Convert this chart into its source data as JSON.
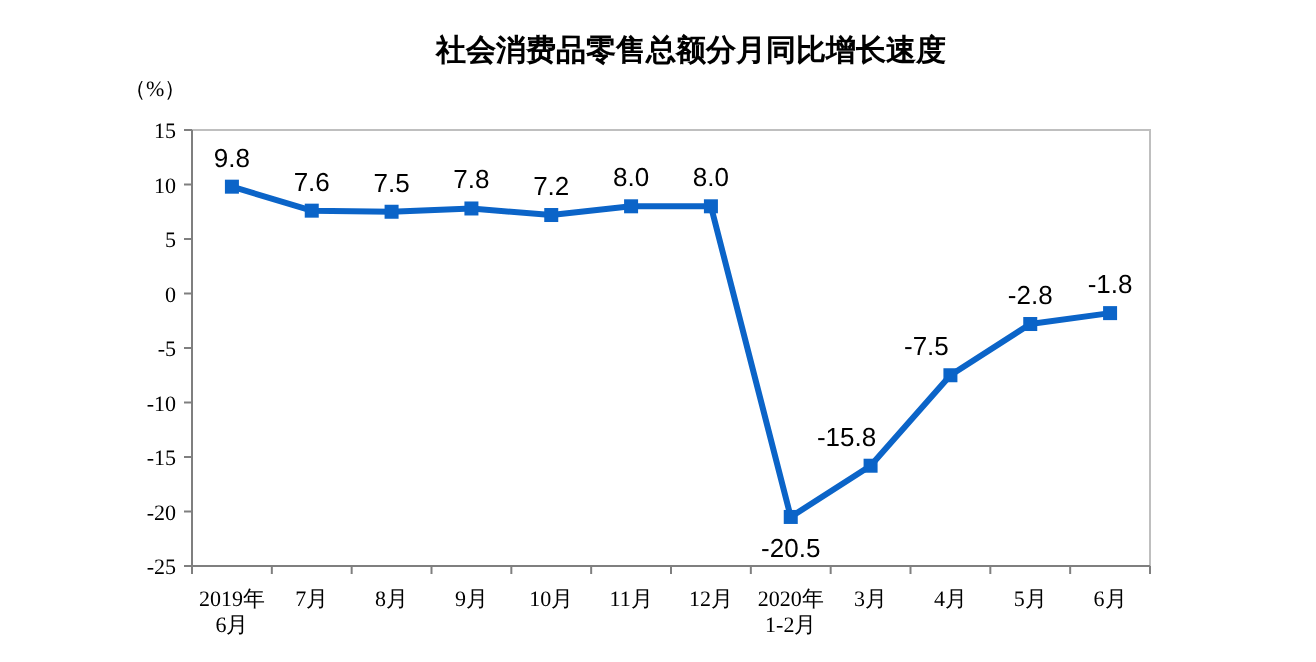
{
  "chart_data": {
    "type": "line",
    "title": "社会消费品零售总额分月同比增长速度",
    "ylabel": "（%）",
    "categories": [
      "2019年\n6月",
      "7月",
      "8月",
      "9月",
      "10月",
      "11月",
      "12月",
      "2020年\n1-2月",
      "3月",
      "4月",
      "5月",
      "6月"
    ],
    "series": [
      {
        "color": "#0b64c8",
        "values": [
          9.8,
          7.6,
          7.5,
          7.8,
          7.2,
          8.0,
          8.0,
          -20.5,
          -15.8,
          -7.5,
          -2.8,
          -1.8
        ],
        "value_labels": [
          "9.8",
          "7.6",
          "7.5",
          "7.8",
          "7.2",
          "8.0",
          "8.0",
          "-20.5",
          "-15.8",
          "-7.5",
          "-2.8",
          "-1.8"
        ]
      }
    ],
    "ylim": [
      -25,
      15
    ],
    "yticks": [
      -25,
      -20,
      -15,
      -10,
      -5,
      0,
      5,
      10,
      15
    ],
    "marker": "square",
    "line_style": "solid",
    "grid": false
  }
}
